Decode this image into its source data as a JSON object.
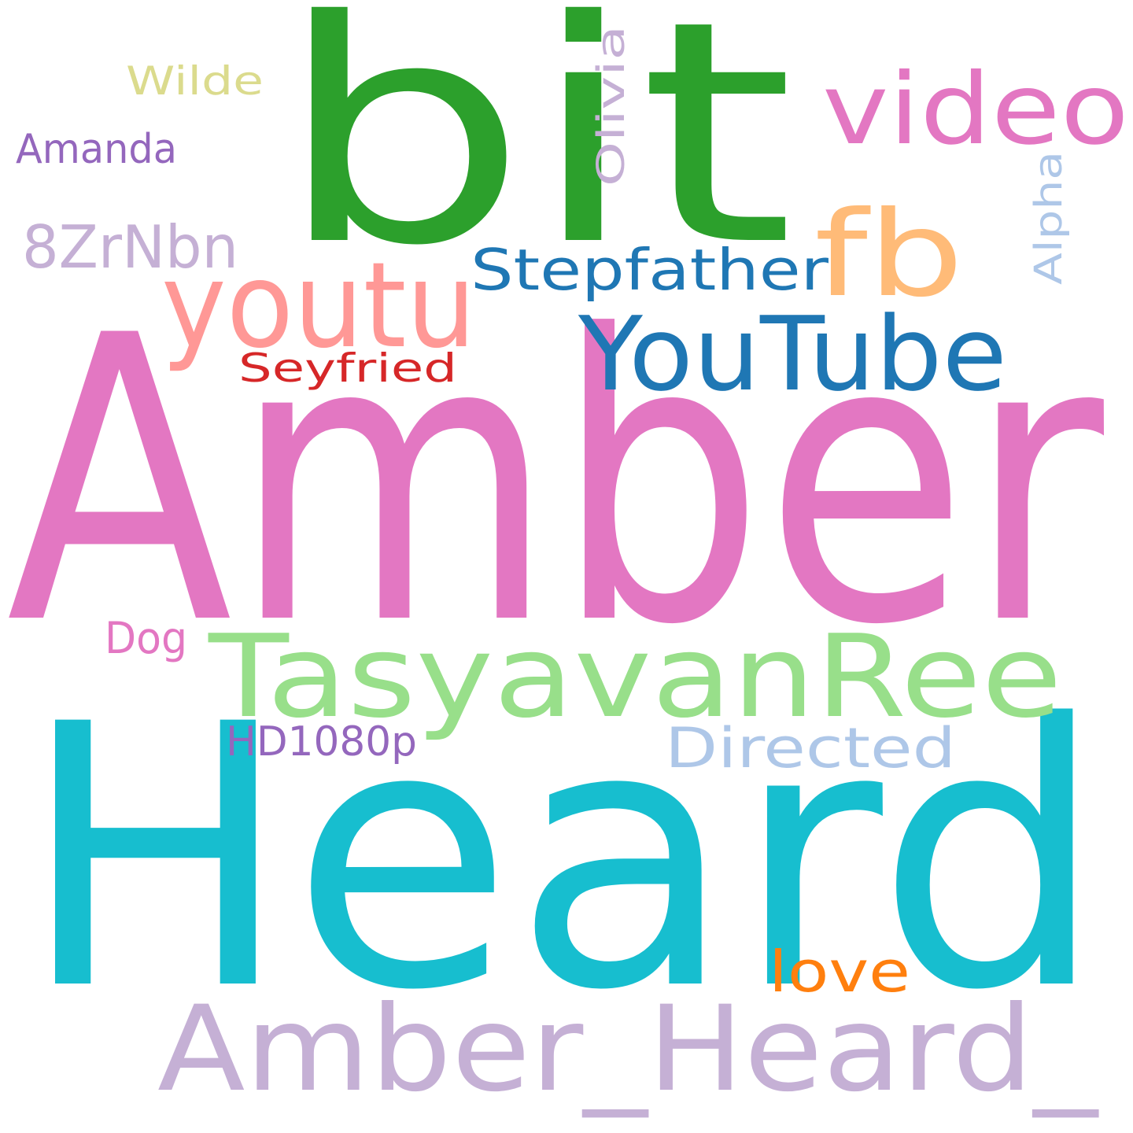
{
  "words": [
    {
      "text": "bit",
      "color": "#2ca02c"
    },
    {
      "text": "Amber",
      "color": "#e377c2"
    },
    {
      "text": "Heard",
      "color": "#17becf"
    },
    {
      "text": "video",
      "color": "#e377c2"
    },
    {
      "text": "fb",
      "color": "#ffbb78"
    },
    {
      "text": "youtu",
      "color": "#ff9896"
    },
    {
      "text": "YouTube",
      "color": "#1f77b4"
    },
    {
      "text": "Stepfather",
      "color": "#1f77b4"
    },
    {
      "text": "TasyavanRee",
      "color": "#98df8a"
    },
    {
      "text": "Amber_Heard_",
      "color": "#c5b0d5"
    },
    {
      "text": "8ZrNbn",
      "color": "#c5b0d5"
    },
    {
      "text": "Wilde",
      "color": "#dbdb8d"
    },
    {
      "text": "Amanda",
      "color": "#9467bd"
    },
    {
      "text": "Olivia",
      "color": "#c5b0d5"
    },
    {
      "text": "Alpha",
      "color": "#aec7e8"
    },
    {
      "text": "Seyfried",
      "color": "#d62728"
    },
    {
      "text": "Dog",
      "color": "#e377c2"
    },
    {
      "text": "Directed",
      "color": "#aec7e8"
    },
    {
      "text": "HD1080p",
      "color": "#9467bd"
    },
    {
      "text": "love",
      "color": "#ff7f0e"
    }
  ]
}
